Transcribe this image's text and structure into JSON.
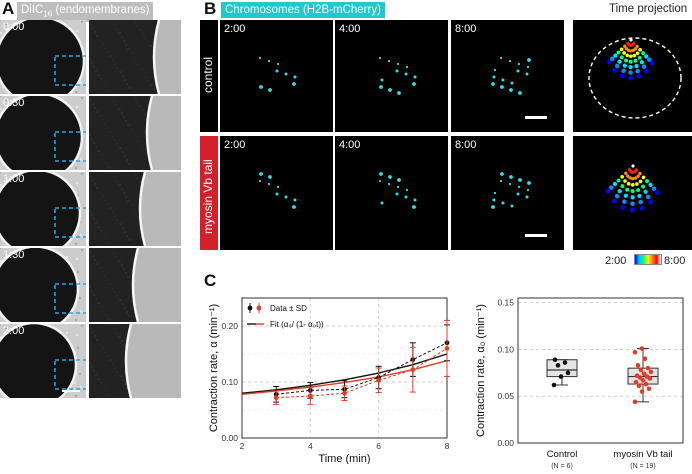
{
  "panelA": {
    "letter": "A",
    "label_main": "DiIC",
    "label_sub": "16",
    "label_rest": " (endomembranes)",
    "times": [
      "0:00",
      "0:30",
      "1:00",
      "1:30",
      "2:00"
    ]
  },
  "panelB": {
    "letter": "B",
    "label": "Chromosomes (H2B-mCherry)",
    "projection_title": "Time projection",
    "rows": [
      {
        "label": "control",
        "times": [
          "2:00",
          "4:00",
          "8:00"
        ]
      },
      {
        "label": "myosin Vb tail",
        "times": [
          "2:00",
          "4:00",
          "8:00"
        ]
      }
    ],
    "colorbar": {
      "min": "2:00",
      "max": "8:00"
    }
  },
  "panelC": {
    "letter": "C",
    "chart_data": [
      {
        "type": "line",
        "xlabel": "Time (min)",
        "ylabel": "Contraction rate, α (min⁻¹)",
        "xlim": [
          2,
          8
        ],
        "ylim": [
          0,
          0.25
        ],
        "xticks": [
          2,
          4,
          6,
          8
        ],
        "yticks": [
          0.0,
          0.1,
          0.2
        ],
        "ytick_labels": [
          "0.00",
          "0.10",
          "0.20"
        ],
        "grid": true,
        "legend": [
          "Data ± SD",
          "Fit (α₀/ (1- α₀t))"
        ],
        "legend_position": "top-left",
        "series": [
          {
            "color": "#111111",
            "kind": "data",
            "x": [
              3,
              4,
              5,
              6,
              7,
              8
            ],
            "y": [
              0.078,
              0.085,
              0.087,
              0.108,
              0.14,
              0.17
            ],
            "sd": [
              0.014,
              0.014,
              0.015,
              0.02,
              0.03,
              0.032
            ]
          },
          {
            "color": "#e03c28",
            "kind": "data",
            "x": [
              3,
              4,
              5,
              6,
              7,
              8
            ],
            "y": [
              0.072,
              0.075,
              0.08,
              0.103,
              0.122,
              0.16
            ],
            "sd": [
              0.012,
              0.015,
              0.013,
              0.022,
              0.04,
              0.05
            ]
          },
          {
            "color": "#111111",
            "kind": "fit",
            "x": [
              2,
              3,
              4,
              5,
              6,
              7,
              8
            ],
            "y": [
              0.08,
              0.086,
              0.094,
              0.104,
              0.116,
              0.131,
              0.15
            ]
          },
          {
            "color": "#e03c28",
            "kind": "fit",
            "x": [
              2,
              3,
              4,
              5,
              6,
              7,
              8
            ],
            "y": [
              0.078,
              0.084,
              0.091,
              0.099,
              0.109,
              0.122,
              0.138
            ]
          }
        ]
      },
      {
        "type": "box",
        "ylabel": "Contraction rate, α₀ (min⁻¹)",
        "ylim": [
          0,
          0.155
        ],
        "yticks": [
          0.0,
          0.05,
          0.1,
          0.15
        ],
        "ytick_labels": [
          "0.00",
          "0.05",
          "0.10",
          "0.15"
        ],
        "categories": [
          "Control",
          "myosin Vb tail"
        ],
        "counts": [
          "(N = 6)",
          "(N = 19)"
        ],
        "boxes": [
          {
            "color": "#111111",
            "whisker_low": 0.062,
            "q1": 0.071,
            "median": 0.078,
            "q3": 0.089,
            "whisker_high": 0.089,
            "points": [
              0.062,
              0.071,
              0.075,
              0.083,
              0.086,
              0.089
            ]
          },
          {
            "color": "#e03c28",
            "whisker_low": 0.044,
            "q1": 0.063,
            "median": 0.071,
            "q3": 0.08,
            "whisker_high": 0.101,
            "points": [
              0.044,
              0.055,
              0.058,
              0.061,
              0.063,
              0.065,
              0.067,
              0.069,
              0.07,
              0.071,
              0.072,
              0.074,
              0.076,
              0.078,
              0.08,
              0.083,
              0.09,
              0.097,
              0.101
            ]
          }
        ]
      }
    ]
  }
}
